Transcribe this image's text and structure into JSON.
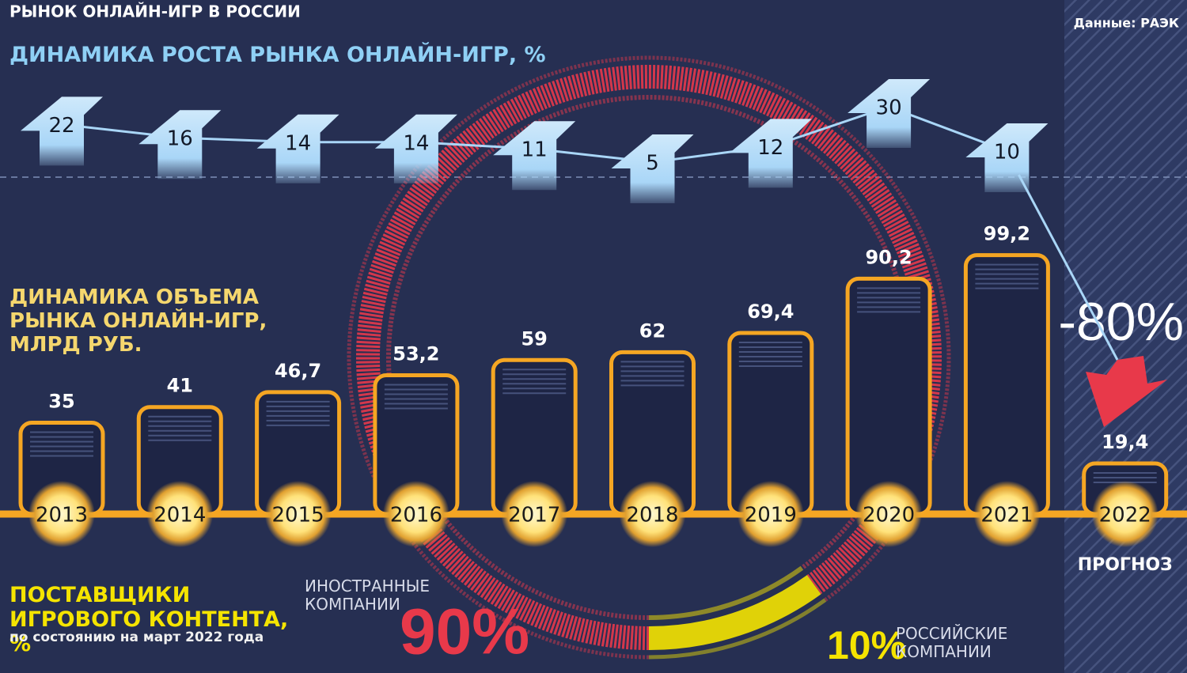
{
  "title": "РЫНОК ОНЛАЙН-ИГР В РОССИИ",
  "source": "Данные: РАЭК",
  "chart_data": [
    {
      "type": "line",
      "title": "ДИНАМИКА РОСТА РЫНКА ОНЛАЙН-ИГР, %",
      "values": [
        22,
        16,
        14,
        14,
        11,
        5,
        12,
        30,
        10
      ],
      "color": "#a9d6f7"
    },
    {
      "type": "bar",
      "title": "ДИНАМИКА ОБЪЕМА РЫНКА ОНЛАЙН-ИГР, МЛРД РУБ.",
      "categories": [
        "2013",
        "2014",
        "2015",
        "2016",
        "2017",
        "2018",
        "2019",
        "2020",
        "2021",
        "2022"
      ],
      "values": [
        35,
        41,
        46.7,
        53.2,
        59,
        62,
        69.4,
        90.2,
        99.2,
        19.4
      ],
      "value_labels": [
        "35",
        "41",
        "46,7",
        "53,2",
        "59",
        "62",
        "69,4",
        "90,2",
        "99,2",
        "19,4"
      ],
      "color": "#f5a623",
      "forecast_label": "ПРОГНОЗ",
      "annotation": "-80%"
    },
    {
      "type": "pie",
      "title": "ПОСТАВЩИКИ ИГРОВОГО КОНТЕНТА, %",
      "subtitle": "по состоянию на март 2022 года",
      "categories": [
        "ИНОСТРАННЫЕ КОМПАНИИ",
        "РОССИЙСКИЕ КОМПАНИИ"
      ],
      "values": [
        90,
        10
      ],
      "value_labels": [
        "90%",
        "10%"
      ],
      "colors": [
        "#e8394a",
        "#f5e400"
      ]
    }
  ]
}
